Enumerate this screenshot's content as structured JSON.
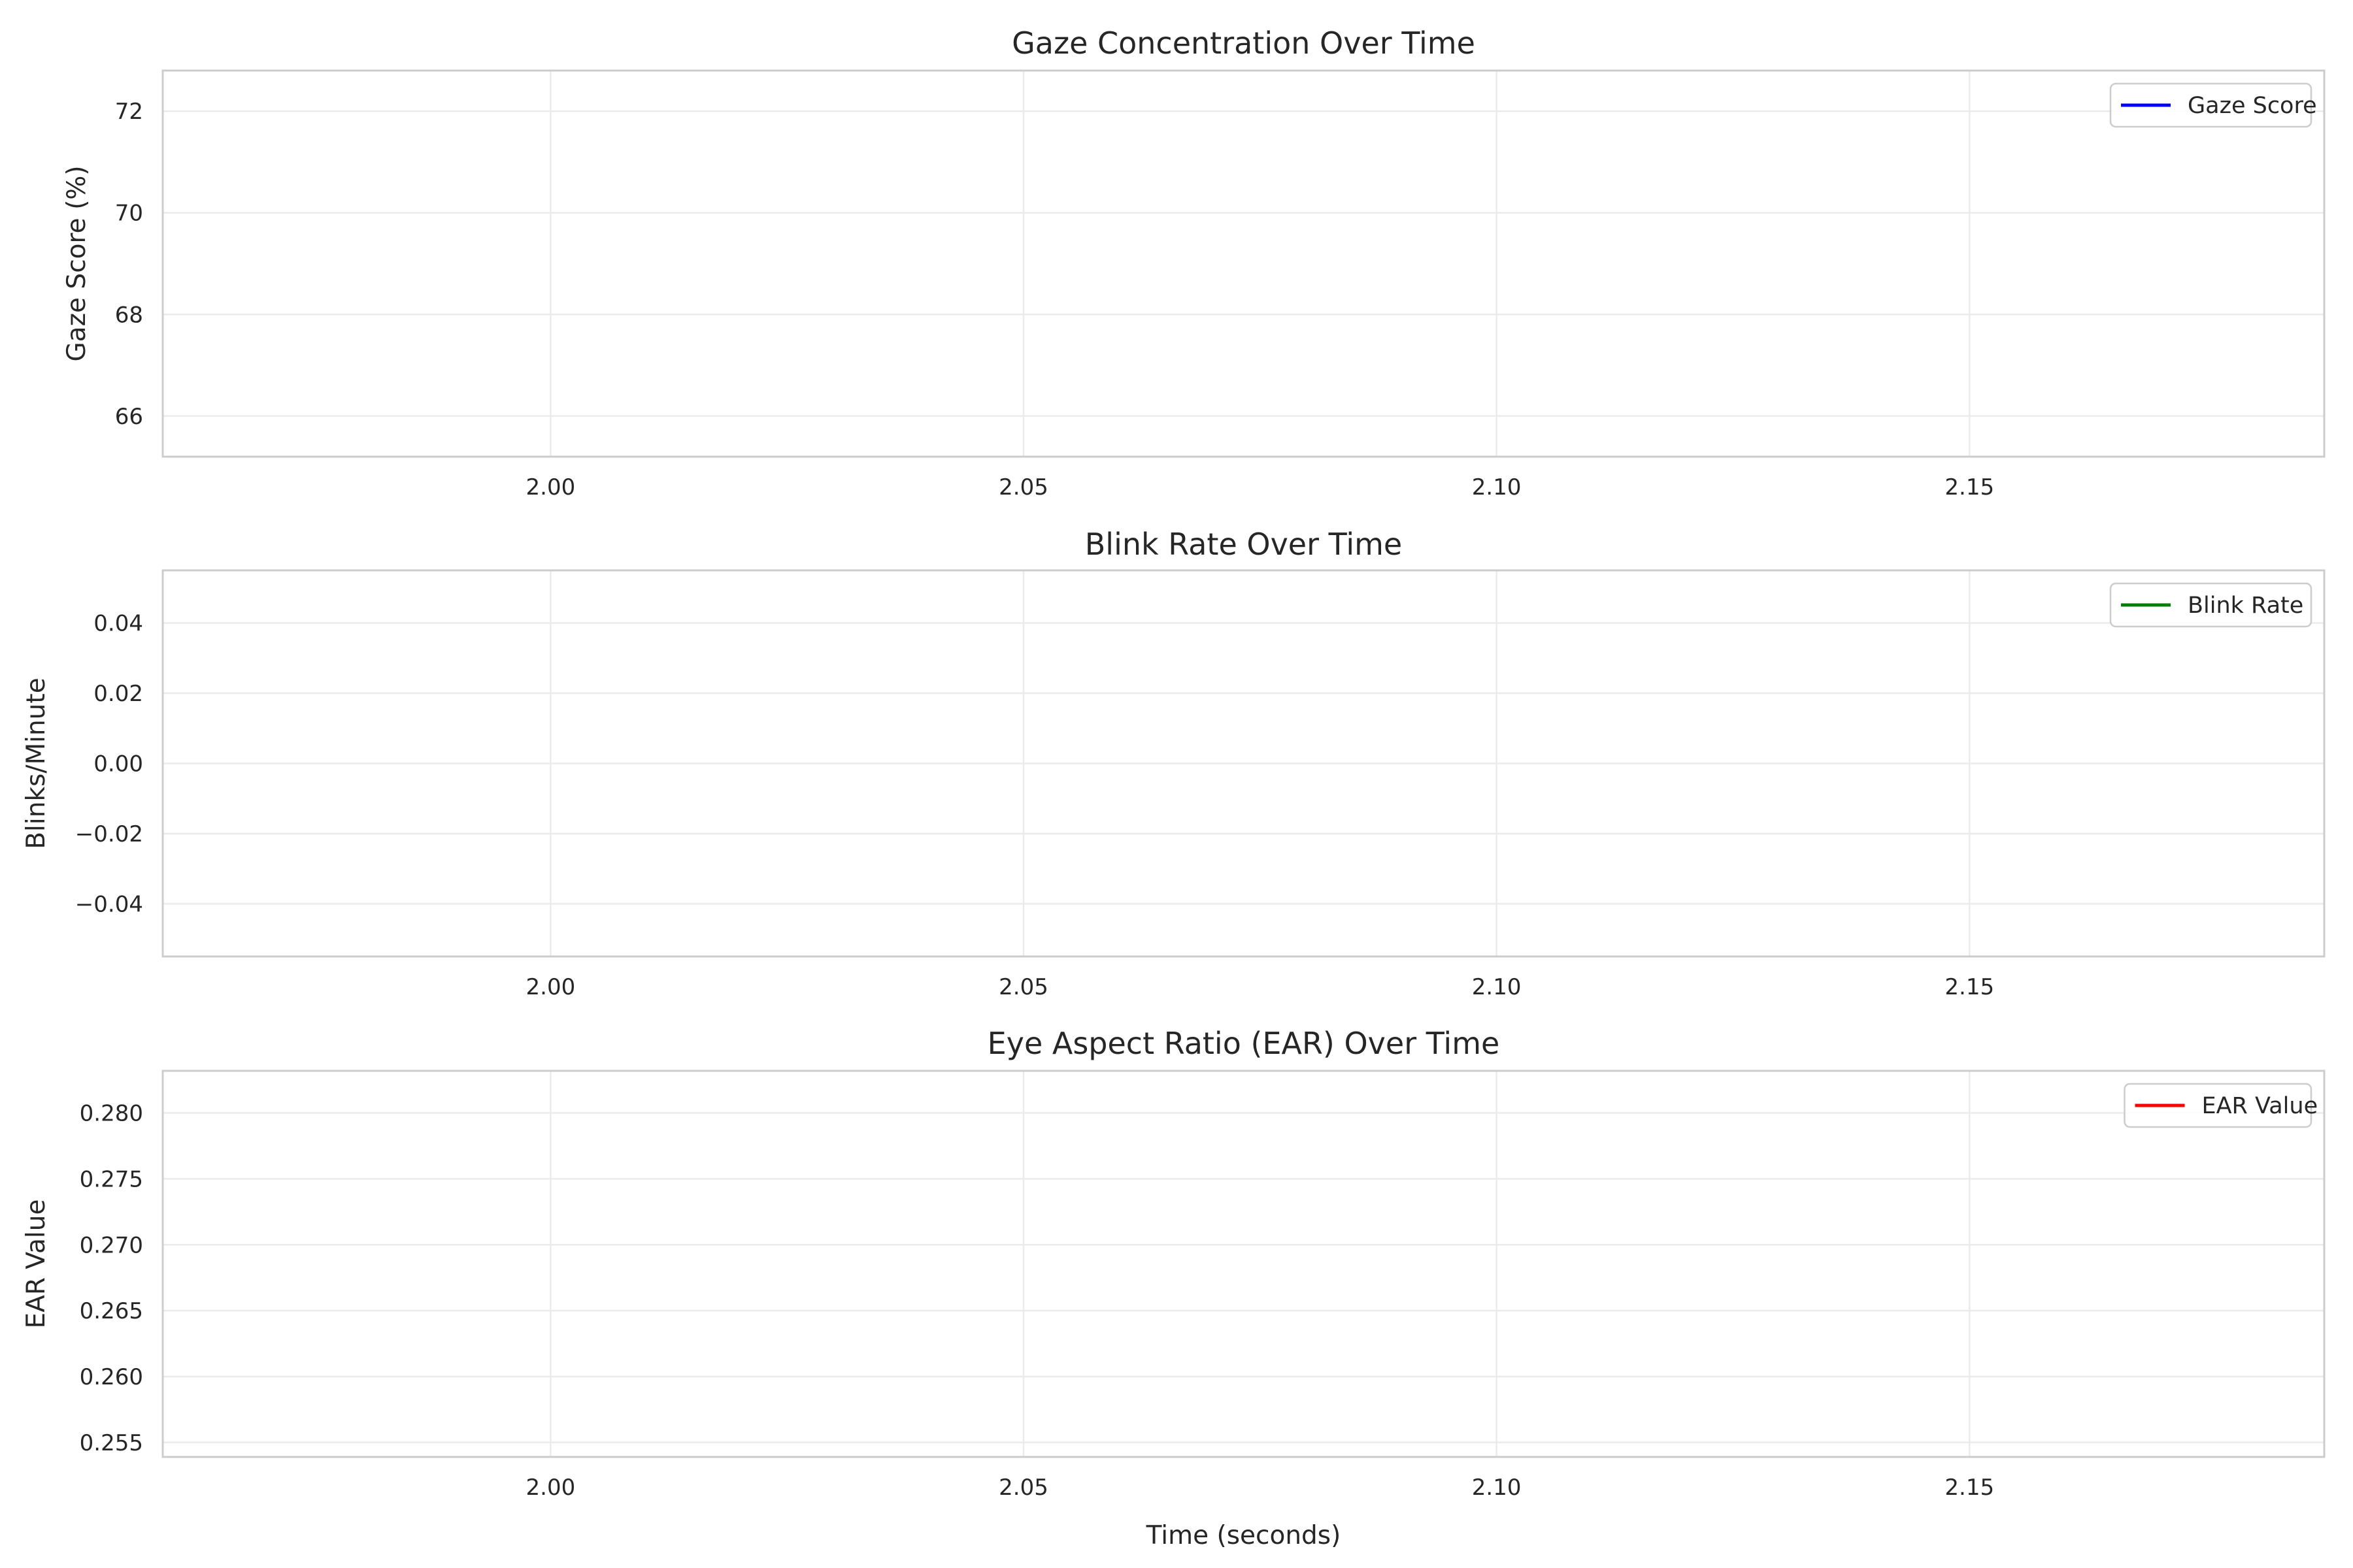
{
  "chart_data": [
    {
      "type": "line",
      "title": "Gaze Concentration Over Time",
      "xlabel": "",
      "ylabel": "Gaze Score (%)",
      "xlim": [
        1.959,
        2.1875
      ],
      "ylim": [
        65.2,
        72.8
      ],
      "x_ticks": [
        "2.00",
        "2.05",
        "2.10",
        "2.15"
      ],
      "y_ticks": [
        "66",
        "68",
        "70",
        "72"
      ],
      "grid": true,
      "legend_position": "top-right",
      "series": [
        {
          "name": "Gaze Score",
          "color": "#0000ff",
          "x": [],
          "y": []
        }
      ]
    },
    {
      "type": "line",
      "title": "Blink Rate Over Time",
      "xlabel": "",
      "ylabel": "Blinks/Minute",
      "xlim": [
        1.959,
        2.1875
      ],
      "ylim": [
        -0.055,
        0.055
      ],
      "x_ticks": [
        "2.00",
        "2.05",
        "2.10",
        "2.15"
      ],
      "y_ticks": [
        "0.04",
        "0.02",
        "0.00",
        "−0.02",
        "−0.04"
      ],
      "grid": true,
      "legend_position": "top-right",
      "series": [
        {
          "name": "Blink Rate",
          "color": "#008000",
          "x": [],
          "y": []
        }
      ]
    },
    {
      "type": "line",
      "title": "Eye Aspect Ratio (EAR) Over Time",
      "xlabel": "Time (seconds)",
      "ylabel": "EAR Value",
      "xlim": [
        1.959,
        2.1875
      ],
      "ylim": [
        0.2539,
        0.2832
      ],
      "x_ticks": [
        "2.00",
        "2.05",
        "2.10",
        "2.15"
      ],
      "y_ticks": [
        "0.280",
        "0.275",
        "0.270",
        "0.265",
        "0.260",
        "0.255"
      ],
      "grid": true,
      "legend_position": "top-right",
      "series": [
        {
          "name": "EAR Value",
          "color": "#ff0000",
          "x": [],
          "y": []
        }
      ]
    }
  ]
}
